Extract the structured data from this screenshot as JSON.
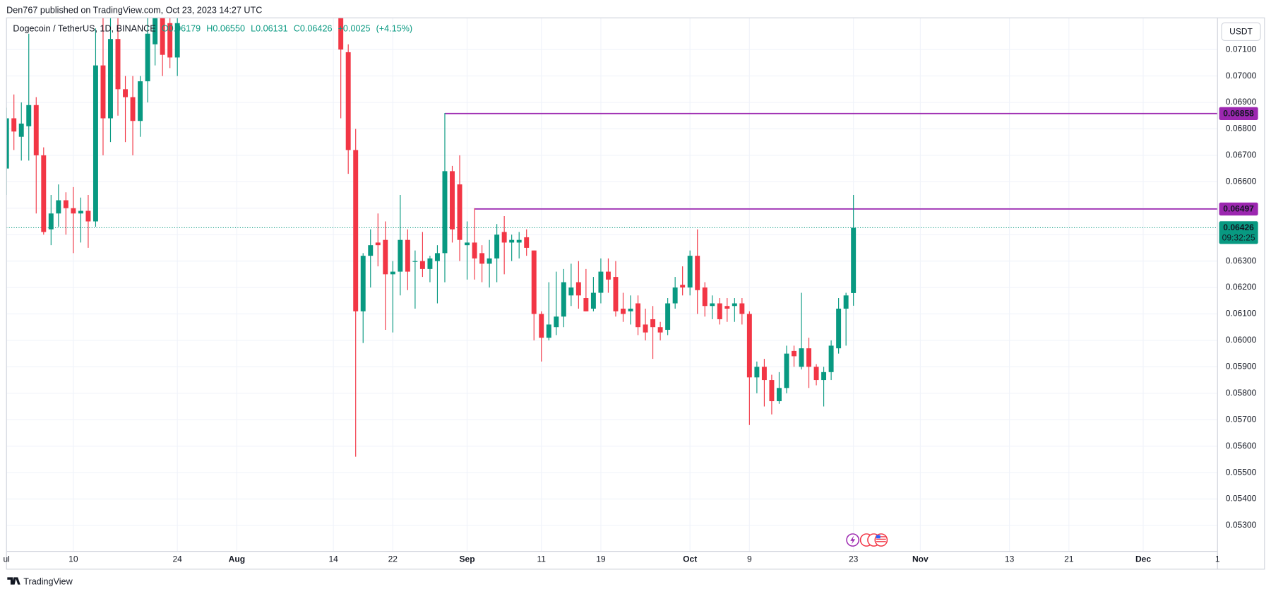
{
  "header": "Den767 published on TradingView.com, Oct 23, 2023 14:27 UTC",
  "footer": "TradingView",
  "chart_data": {
    "type": "candlestick",
    "legend": {
      "symbol": "Dogecoin / TetherUS, 1D, BINANCE",
      "open": "O0.06179",
      "high": "H0.06550",
      "low": "L0.06131",
      "close": "C0.06426",
      "change": "+0.0025",
      "change_percent": "(+4.15%)"
    },
    "currency": "USDT",
    "countdown": "09:32:25",
    "up_color": "#089981",
    "down_color": "#f23645",
    "grid": true,
    "x": [
      "Jul 1",
      "Jul 2",
      "Jul 3",
      "Jul 4",
      "Jul 5",
      "Jul 6",
      "Jul 7",
      "Jul 8",
      "Jul 9",
      "Jul 10",
      "Jul 11",
      "Jul 12",
      "Jul 13",
      "Jul 14",
      "Jul 15",
      "Jul 16",
      "Jul 17",
      "Jul 18",
      "Jul 19",
      "Jul 20",
      "Jul 21",
      "Jul 22",
      "Jul 23",
      "Jul 24",
      "Aug 15",
      "Aug 16",
      "Aug 17",
      "Aug 18",
      "Aug 19",
      "Aug 20",
      "Aug 21",
      "Aug 22",
      "Aug 23",
      "Aug 24",
      "Aug 25",
      "Aug 26",
      "Aug 27",
      "Aug 28",
      "Aug 29",
      "Aug 30",
      "Aug 31",
      "Sep 1",
      "Sep 2",
      "Sep 3",
      "Sep 4",
      "Sep 5",
      "Sep 6",
      "Sep 7",
      "Sep 8",
      "Sep 9",
      "Sep 10",
      "Sep 11",
      "Sep 12",
      "Sep 13",
      "Sep 14",
      "Sep 15",
      "Sep 16",
      "Sep 17",
      "Sep 18",
      "Sep 19",
      "Sep 20",
      "Sep 21",
      "Sep 22",
      "Sep 23",
      "Sep 24",
      "Sep 25",
      "Sep 26",
      "Sep 27",
      "Sep 28",
      "Sep 29",
      "Sep 30",
      "Oct 1",
      "Oct 2",
      "Oct 3",
      "Oct 4",
      "Oct 5",
      "Oct 6",
      "Oct 7",
      "Oct 8",
      "Oct 9",
      "Oct 10",
      "Oct 11",
      "Oct 12",
      "Oct 13",
      "Oct 14",
      "Oct 15",
      "Oct 16",
      "Oct 17",
      "Oct 18",
      "Oct 19",
      "Oct 20",
      "Oct 21",
      "Oct 22",
      "Oct 23"
    ],
    "open": [
      0.0665,
      0.0684,
      0.0677,
      0.0681,
      0.0689,
      0.067,
      0.0642,
      0.0648,
      0.0653,
      0.065,
      0.0648,
      0.0649,
      0.0645,
      0.0704,
      0.0684,
      0.0714,
      0.0695,
      0.0692,
      0.0683,
      0.0698,
      0.0712,
      0.0722,
      0.072,
      0.0707,
      0.0722,
      0.0709,
      0.0672,
      0.0611,
      0.0632,
      0.0637,
      0.0638,
      0.0625,
      0.0626,
      0.0638,
      0.063,
      0.063,
      0.0627,
      0.063,
      0.0633,
      0.0664,
      0.0659,
      0.0636,
      0.0637,
      0.0633,
      0.0629,
      0.0631,
      0.0641,
      0.0637,
      0.0637,
      0.0639,
      0.0634,
      0.061,
      0.0601,
      0.0605,
      0.0609,
      0.0617,
      0.0622,
      0.0616,
      0.0612,
      0.0618,
      0.0626,
      0.0624,
      0.0612,
      0.0611,
      0.0614,
      0.0606,
      0.0608,
      0.0605,
      0.0604,
      0.0614,
      0.0621,
      0.062,
      0.0632,
      0.062,
      0.0613,
      0.0614,
      0.0613,
      0.0613,
      0.0614,
      0.061,
      0.0586,
      0.059,
      0.0585,
      0.0577,
      0.0582,
      0.0596,
      0.059,
      0.0597,
      0.059,
      0.0585,
      0.0588,
      0.0597,
      0.0612,
      0.06179
    ],
    "high": [
      0.0688,
      0.0693,
      0.069,
      0.0716,
      0.0692,
      0.0673,
      0.0655,
      0.0659,
      0.0656,
      0.0658,
      0.0654,
      0.0655,
      0.0718,
      0.0722,
      0.0722,
      0.0722,
      0.07,
      0.07,
      0.07,
      0.0722,
      0.0722,
      0.0722,
      0.0722,
      0.0722,
      0.0722,
      0.0712,
      0.068,
      0.0633,
      0.0642,
      0.0648,
      0.0645,
      0.063,
      0.0655,
      0.0642,
      0.0634,
      0.0641,
      0.0632,
      0.0636,
      0.0686,
      0.0666,
      0.067,
      0.0645,
      0.065,
      0.0636,
      0.0638,
      0.0644,
      0.0647,
      0.064,
      0.0641,
      0.0642,
      0.0634,
      0.0611,
      0.0622,
      0.0626,
      0.0627,
      0.0629,
      0.063,
      0.0627,
      0.0624,
      0.0631,
      0.0631,
      0.063,
      0.0618,
      0.0617,
      0.0617,
      0.0612,
      0.0613,
      0.0607,
      0.0616,
      0.0624,
      0.0628,
      0.0634,
      0.0642,
      0.0622,
      0.0617,
      0.0616,
      0.0616,
      0.0616,
      0.0616,
      0.0611,
      0.0592,
      0.0593,
      0.0587,
      0.0588,
      0.0598,
      0.0598,
      0.0618,
      0.0601,
      0.0591,
      0.059,
      0.06,
      0.0616,
      0.0618,
      0.0655
    ],
    "low": [
      0.0655,
      0.0672,
      0.0668,
      0.0668,
      0.0648,
      0.064,
      0.0636,
      0.0643,
      0.064,
      0.0633,
      0.0637,
      0.0635,
      0.0643,
      0.067,
      0.0675,
      0.0685,
      0.0675,
      0.067,
      0.0677,
      0.069,
      0.0704,
      0.07,
      0.0703,
      0.07,
      0.0684,
      0.0663,
      0.0556,
      0.0599,
      0.062,
      0.0628,
      0.0604,
      0.0603,
      0.0617,
      0.0619,
      0.0612,
      0.0624,
      0.0622,
      0.0614,
      0.0622,
      0.0637,
      0.063,
      0.0623,
      0.0623,
      0.0622,
      0.062,
      0.0622,
      0.0625,
      0.063,
      0.0631,
      0.0632,
      0.06,
      0.0592,
      0.06,
      0.0602,
      0.0605,
      0.0613,
      0.0612,
      0.0611,
      0.0611,
      0.0614,
      0.0618,
      0.0609,
      0.0607,
      0.0606,
      0.0602,
      0.06,
      0.0593,
      0.06,
      0.0602,
      0.0612,
      0.0617,
      0.0617,
      0.061,
      0.0609,
      0.0608,
      0.0606,
      0.0607,
      0.0607,
      0.0606,
      0.0568,
      0.058,
      0.0575,
      0.0572,
      0.0576,
      0.058,
      0.059,
      0.0589,
      0.0582,
      0.0583,
      0.0575,
      0.0585,
      0.0595,
      0.0598,
      0.06131
    ],
    "close": [
      0.0684,
      0.0679,
      0.0682,
      0.0689,
      0.067,
      0.0641,
      0.0648,
      0.0653,
      0.065,
      0.0648,
      0.0649,
      0.0645,
      0.0704,
      0.0684,
      0.0714,
      0.0695,
      0.0692,
      0.0683,
      0.0698,
      0.0716,
      0.0722,
      0.0708,
      0.0707,
      0.072,
      0.071,
      0.0672,
      0.0611,
      0.0632,
      0.0636,
      0.0636,
      0.0625,
      0.0626,
      0.0638,
      0.0626,
      0.063,
      0.0627,
      0.0631,
      0.0633,
      0.0664,
      0.0642,
      0.0638,
      0.0637,
      0.0631,
      0.0629,
      0.0631,
      0.064,
      0.0637,
      0.0638,
      0.0638,
      0.0635,
      0.061,
      0.0601,
      0.0606,
      0.0609,
      0.0622,
      0.062,
      0.0617,
      0.0611,
      0.0618,
      0.0626,
      0.0623,
      0.0611,
      0.061,
      0.0612,
      0.0605,
      0.0603,
      0.0605,
      0.0603,
      0.0614,
      0.062,
      0.062,
      0.0632,
      0.0619,
      0.0613,
      0.0614,
      0.0608,
      0.0612,
      0.0614,
      0.061,
      0.0586,
      0.059,
      0.0585,
      0.0577,
      0.0582,
      0.0595,
      0.0594,
      0.0597,
      0.059,
      0.0585,
      0.0588,
      0.0598,
      0.0612,
      0.0617,
      0.06426
    ],
    "levels": [
      {
        "price": 0.06858,
        "start": "Aug 29"
      },
      {
        "price": 0.06497,
        "start": "Sep 2"
      }
    ],
    "level_color": "#9c27b0",
    "xlim": [
      "Jul 1",
      "Dec 11"
    ],
    "xticks": [
      {
        "value": "Jul 1",
        "label": "ul"
      },
      {
        "value": "Jul 10",
        "label": "10"
      },
      {
        "value": "Jul 24",
        "label": "24"
      },
      {
        "value": "Aug 1",
        "label": "Aug"
      },
      {
        "value": "Aug 14",
        "label": "14"
      },
      {
        "value": "Aug 22",
        "label": "22"
      },
      {
        "value": "Sep 1",
        "label": "Sep"
      },
      {
        "value": "Sep 11",
        "label": "11"
      },
      {
        "value": "Sep 19",
        "label": "19"
      },
      {
        "value": "Oct 1",
        "label": "Oct"
      },
      {
        "value": "Oct 9",
        "label": "9"
      },
      {
        "value": "Oct 23",
        "label": "23"
      },
      {
        "value": "Nov 1",
        "label": "Nov"
      },
      {
        "value": "Nov 13",
        "label": "13"
      },
      {
        "value": "Nov 21",
        "label": "21"
      },
      {
        "value": "Dec 1",
        "label": "Dec"
      },
      {
        "value": "Dec 11",
        "label": "1"
      }
    ],
    "ylim": [
      0.05202,
      0.0722
    ],
    "yticks": [
      {
        "value": 0.053,
        "label": "0.05300"
      },
      {
        "value": 0.054,
        "label": "0.05400"
      },
      {
        "value": 0.055,
        "label": "0.05500"
      },
      {
        "value": 0.056,
        "label": "0.05600"
      },
      {
        "value": 0.057,
        "label": "0.05700"
      },
      {
        "value": 0.058,
        "label": "0.05800"
      },
      {
        "value": 0.059,
        "label": "0.05900"
      },
      {
        "value": 0.06,
        "label": "0.06000"
      },
      {
        "value": 0.061,
        "label": "0.06100"
      },
      {
        "value": 0.062,
        "label": "0.06200"
      },
      {
        "value": 0.063,
        "label": "0.06300"
      },
      {
        "value": 0.064,
        "label": "0.06400"
      },
      {
        "value": 0.065,
        "label": "0.06500"
      },
      {
        "value": 0.066,
        "label": "0.06600"
      },
      {
        "value": 0.067,
        "label": "0.06700"
      },
      {
        "value": 0.068,
        "label": "0.06800"
      },
      {
        "value": 0.069,
        "label": "0.06900"
      },
      {
        "value": 0.07,
        "label": "0.07000"
      },
      {
        "value": 0.071,
        "label": "0.07100"
      }
    ]
  }
}
